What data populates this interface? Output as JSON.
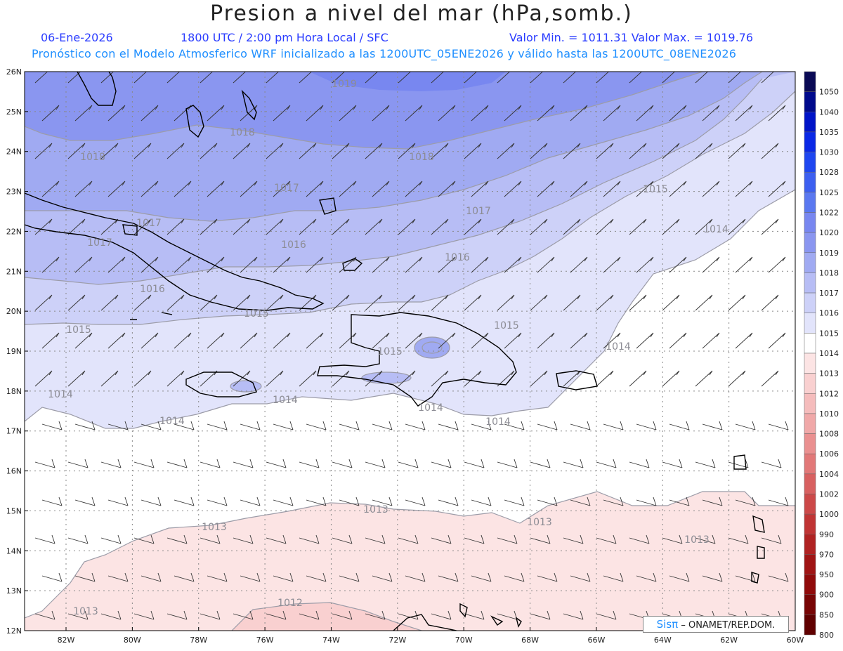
{
  "title": "Presion a nivel del mar (hPa,somb.)",
  "subtitle": {
    "date": "06-Ene-2026",
    "time": "1800 UTC / 2:00 pm Hora Local / SFC",
    "min_max": "Valor Min. = 1011.31  Valor Max. = 1019.76",
    "model_line": "Pronóstico con el Modelo Atmosferico WRF inicializado a las 1200UTC_05ENE2026 y válido hasta las  1200UTC_08ENE2026"
  },
  "credit": {
    "brand": "Sisπ",
    "text": "– ONAMET/REP.DOM."
  },
  "axes": {
    "lat_labels": [
      "26N",
      "25N",
      "24N",
      "23N",
      "22N",
      "21N",
      "20N",
      "19N",
      "18N",
      "17N",
      "16N",
      "15N",
      "14N",
      "13N",
      "12N"
    ],
    "lon_labels": [
      "82W",
      "80W",
      "78W",
      "76W",
      "74W",
      "72W",
      "70W",
      "68W",
      "66W",
      "64W",
      "62W",
      "60W"
    ]
  },
  "colorbar": {
    "labels": [
      "1050",
      "1040",
      "1035",
      "1030",
      "1028",
      "1025",
      "1022",
      "1020",
      "1019",
      "1018",
      "1017",
      "1016",
      "1015",
      "1014",
      "1013",
      "1012",
      "1010",
      "1008",
      "1006",
      "1004",
      "1002",
      "1000",
      "990",
      "970",
      "950",
      "900",
      "850",
      "800"
    ],
    "colors": [
      "#0a0a55",
      "#000a8c",
      "#0014c8",
      "#0a28e6",
      "#1e46f0",
      "#3c5ff0",
      "#5a78f0",
      "#7887f0",
      "#8a96f0",
      "#a0aaf2",
      "#b7bdf5",
      "#cdd1f8",
      "#e2e4fb",
      "#ffffff",
      "#fce4e4",
      "#f9d0d0",
      "#f5bcbc",
      "#f0a8a8",
      "#ea9090",
      "#e27878",
      "#d86060",
      "#cc4848",
      "#c03434",
      "#b02222",
      "#a01414",
      "#900a0a",
      "#780505",
      "#600000"
    ]
  },
  "contour_labels": [
    {
      "text": "1019"
    },
    {
      "text": "1018"
    },
    {
      "text": "1018"
    },
    {
      "text": "1018"
    },
    {
      "text": "1017"
    },
    {
      "text": "1017"
    },
    {
      "text": "1017"
    },
    {
      "text": "1017"
    },
    {
      "text": "1016"
    },
    {
      "text": "1016"
    },
    {
      "text": "1016"
    },
    {
      "text": "1015"
    },
    {
      "text": "1015"
    },
    {
      "text": "1015"
    },
    {
      "text": "1015"
    },
    {
      "text": "1015"
    },
    {
      "text": "1014"
    },
    {
      "text": "1014"
    },
    {
      "text": "1014"
    },
    {
      "text": "1014"
    },
    {
      "text": "1014"
    },
    {
      "text": "1014"
    },
    {
      "text": "1014"
    },
    {
      "text": "1013"
    },
    {
      "text": "1013"
    },
    {
      "text": "1013"
    },
    {
      "text": "1013"
    },
    {
      "text": "1013"
    },
    {
      "text": "1012"
    }
  ]
}
